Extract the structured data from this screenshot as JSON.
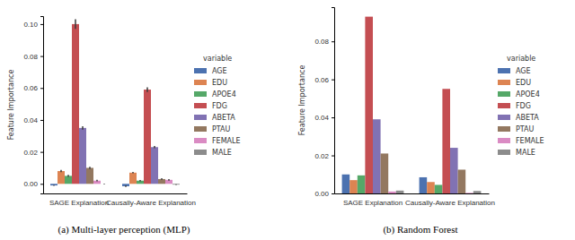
{
  "chart_data": [
    {
      "type": "bar",
      "title": "(a) Multi-layer perception (MLP)",
      "categories": [
        "SAGE Explanation",
        "Causally-Aware Explanation"
      ],
      "y_label": "Feature Importance",
      "legend_title": "variable",
      "legend": "right",
      "ylim": [
        -0.006,
        0.105
      ],
      "yticks": [
        {
          "value": 0,
          "label": "0.00"
        },
        {
          "value": 0.02,
          "label": "0.02"
        },
        {
          "value": 0.04,
          "label": "0.04"
        },
        {
          "value": 0.06,
          "label": "0.06"
        },
        {
          "value": 0.08,
          "label": "0.08"
        },
        {
          "value": 0.1,
          "label": "0.10"
        }
      ],
      "series": [
        {
          "name": "AGE",
          "color": "#4c72b0",
          "values": [
            -0.001,
            -0.0015
          ],
          "errors": [
            0.0003,
            0.0005
          ]
        },
        {
          "name": "EDU",
          "color": "#dd8452",
          "values": [
            0.008,
            0.007
          ],
          "errors": [
            0.0007,
            0.0004
          ]
        },
        {
          "name": "APOE4",
          "color": "#55a868",
          "values": [
            0.005,
            0.002
          ],
          "errors": [
            0.0006,
            0.0004
          ]
        },
        {
          "name": "FDG",
          "color": "#c44e52",
          "values": [
            0.1,
            0.059
          ],
          "errors": [
            0.003,
            0.0015
          ]
        },
        {
          "name": "ABETA",
          "color": "#8172b3",
          "values": [
            0.035,
            0.023
          ],
          "errors": [
            0.001,
            0.0007
          ]
        },
        {
          "name": "PTAU",
          "color": "#937860",
          "values": [
            0.01,
            0.003
          ],
          "errors": [
            0.0007,
            0.0005
          ]
        },
        {
          "name": "FEMALE",
          "color": "#da8bc3",
          "values": [
            0.002,
            0.0025
          ],
          "errors": [
            0.0005,
            0.0005
          ]
        },
        {
          "name": "MALE",
          "color": "#8c8c8c",
          "values": [
            0.0,
            -0.0005
          ],
          "errors": [
            0.0002,
            0.0002
          ]
        }
      ]
    },
    {
      "type": "bar",
      "title": "(b) Random Forest",
      "categories": [
        "SAGE Explanation",
        "Causally-Aware Explanation"
      ],
      "y_label": "Feature Importance",
      "legend_title": "variable",
      "legend": "right",
      "ylim": [
        0,
        0.098
      ],
      "yticks": [
        {
          "value": 0,
          "label": "0.00"
        },
        {
          "value": 0.02,
          "label": "0.02"
        },
        {
          "value": 0.04,
          "label": "0.04"
        },
        {
          "value": 0.06,
          "label": "0.06"
        },
        {
          "value": 0.08,
          "label": "0.08"
        }
      ],
      "series": [
        {
          "name": "AGE",
          "color": "#4c72b0",
          "values": [
            0.01,
            0.0085
          ]
        },
        {
          "name": "EDU",
          "color": "#dd8452",
          "values": [
            0.007,
            0.006
          ]
        },
        {
          "name": "APOE4",
          "color": "#55a868",
          "values": [
            0.0095,
            0.0045
          ]
        },
        {
          "name": "FDG",
          "color": "#c44e52",
          "values": [
            0.093,
            0.055
          ]
        },
        {
          "name": "ABETA",
          "color": "#8172b3",
          "values": [
            0.039,
            0.024
          ]
        },
        {
          "name": "PTAU",
          "color": "#937860",
          "values": [
            0.021,
            0.0125
          ]
        },
        {
          "name": "FEMALE",
          "color": "#da8bc3",
          "values": [
            0.001,
            0.0003
          ]
        },
        {
          "name": "MALE",
          "color": "#8c8c8c",
          "values": [
            0.0015,
            0.0013
          ]
        }
      ]
    }
  ]
}
